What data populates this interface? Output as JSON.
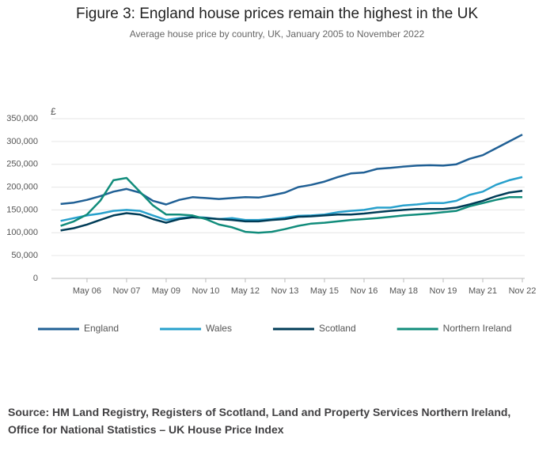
{
  "chart_data": {
    "type": "line",
    "title": "Figure 3: England house prices remain the highest in the UK",
    "subtitle": "Average house price by country, UK, January 2005 to November 2022",
    "y_unit": "£",
    "categories": [
      null,
      null,
      "May 06",
      null,
      null,
      "Nov 07",
      null,
      null,
      "May 09",
      null,
      null,
      "Nov 10",
      null,
      null,
      "May 12",
      null,
      null,
      "Nov 13",
      null,
      null,
      "May 15",
      null,
      null,
      "Nov 16",
      null,
      null,
      "May 18",
      null,
      null,
      "Nov 19",
      null,
      null,
      "May 21",
      null,
      null,
      "Nov 22"
    ],
    "series": [
      {
        "name": "England",
        "color": "#206095",
        "values": [
          163000,
          166000,
          172000,
          180000,
          190000,
          196000,
          188000,
          170000,
          162000,
          172000,
          178000,
          176000,
          174000,
          176000,
          178000,
          177000,
          182000,
          188000,
          200000,
          205000,
          212000,
          222000,
          230000,
          232000,
          240000,
          242000,
          245000,
          247000,
          248000,
          247000,
          250000,
          262000,
          270000,
          285000,
          300000,
          315000
        ]
      },
      {
        "name": "Wales",
        "color": "#27a0cc",
        "values": [
          126000,
          132000,
          138000,
          142000,
          148000,
          150000,
          148000,
          138000,
          128000,
          132000,
          135000,
          133000,
          130000,
          132000,
          128000,
          128000,
          130000,
          133000,
          137000,
          138000,
          140000,
          145000,
          148000,
          150000,
          155000,
          155000,
          160000,
          162000,
          165000,
          165000,
          170000,
          183000,
          190000,
          205000,
          215000,
          222000
        ]
      },
      {
        "name": "Scotland",
        "color": "#003c57",
        "values": [
          105000,
          110000,
          118000,
          128000,
          138000,
          143000,
          140000,
          130000,
          122000,
          130000,
          134000,
          132000,
          130000,
          128000,
          125000,
          125000,
          128000,
          130000,
          135000,
          136000,
          138000,
          140000,
          140000,
          142000,
          145000,
          148000,
          150000,
          152000,
          152000,
          152000,
          155000,
          162000,
          170000,
          180000,
          188000,
          192000
        ]
      },
      {
        "name": "Northern Ireland",
        "color": "#118c7b",
        "values": [
          115000,
          125000,
          140000,
          170000,
          215000,
          220000,
          190000,
          160000,
          140000,
          140000,
          138000,
          130000,
          118000,
          112000,
          102000,
          100000,
          102000,
          108000,
          115000,
          120000,
          122000,
          125000,
          128000,
          130000,
          132000,
          135000,
          138000,
          140000,
          142000,
          145000,
          148000,
          158000,
          165000,
          172000,
          178000,
          178000
        ]
      }
    ],
    "ylim": [
      0,
      350000
    ],
    "yticks": [
      0,
      {
        "value": 50000,
        "label": "50,000"
      },
      {
        "value": 100000,
        "label": "100,000"
      },
      {
        "value": 150000,
        "label": "150,000"
      },
      {
        "value": 200000,
        "label": "200,000"
      },
      {
        "value": 250000,
        "label": "250,000"
      },
      {
        "value": 300000,
        "label": "300,000"
      },
      {
        "value": 350000,
        "label": "350,000"
      }
    ],
    "grid": true,
    "legend": "bottom",
    "source": "Source: HM Land Registry, Registers of Scotland, Land and Property Services Northern Ireland, Office for National Statistics – UK House Price Index"
  }
}
